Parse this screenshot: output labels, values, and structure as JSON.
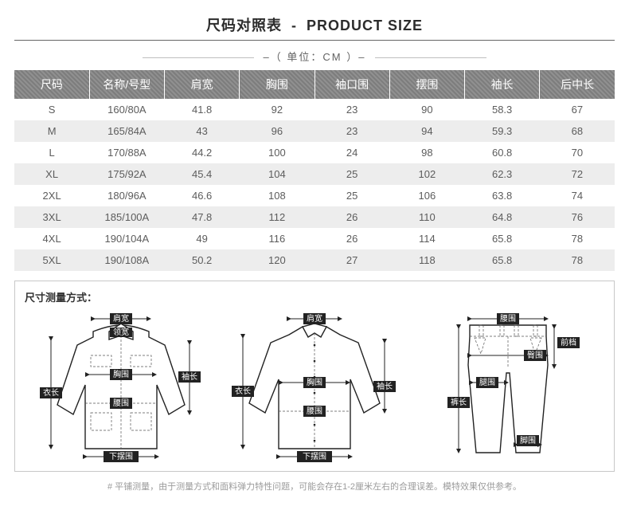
{
  "header": {
    "title_cn": "尺码对照表",
    "title_en": "PRODUCT SIZE",
    "unit_label": "（ 单位：CM ）"
  },
  "table": {
    "columns": [
      "尺码",
      "名称/号型",
      "肩宽",
      "胸围",
      "袖口围",
      "摆围",
      "袖长",
      "后中长"
    ],
    "rows": [
      [
        "S",
        "160/80A",
        "41.8",
        "92",
        "23",
        "90",
        "58.3",
        "67"
      ],
      [
        "M",
        "165/84A",
        "43",
        "96",
        "23",
        "94",
        "59.3",
        "68"
      ],
      [
        "L",
        "170/88A",
        "44.2",
        "100",
        "24",
        "98",
        "60.8",
        "70"
      ],
      [
        "XL",
        "175/92A",
        "45.4",
        "104",
        "25",
        "102",
        "62.3",
        "72"
      ],
      [
        "2XL",
        "180/96A",
        "46.6",
        "108",
        "25",
        "106",
        "63.8",
        "74"
      ],
      [
        "3XL",
        "185/100A",
        "47.8",
        "112",
        "26",
        "110",
        "64.8",
        "76"
      ],
      [
        "4XL",
        "190/104A",
        "49",
        "116",
        "26",
        "114",
        "65.8",
        "78"
      ],
      [
        "5XL",
        "190/108A",
        "50.2",
        "120",
        "27",
        "118",
        "65.8",
        "78"
      ]
    ],
    "header_bg": "#7d7d7d",
    "row_alt_bg": "#ededed",
    "text_color": "#5c5c5c"
  },
  "diagram": {
    "section_title": "尺寸测量方式：",
    "labels": {
      "shoulder": "肩宽",
      "collar": "领宽",
      "chest": "胸围",
      "length": "衣长",
      "sleeve": "袖长",
      "waist": "腰围",
      "hem": "下摆围",
      "waist_p": "腰围",
      "hip": "臀围",
      "front_rise": "前档",
      "thigh": "腿围",
      "pant_len": "裤长",
      "ankle": "脚围"
    }
  },
  "footnote": "#  平铺测量，由于测量方式和面料弹力特性问题，可能会存在1-2厘米左右的合理误差。模特效果仅供参考。"
}
